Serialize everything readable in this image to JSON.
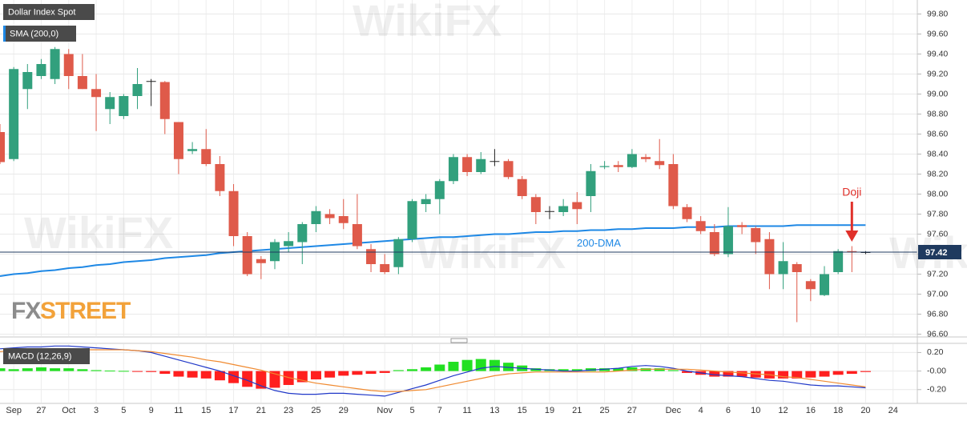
{
  "chart_data": [
    {
      "type": "candlestick",
      "title": "Dollar Index Spot",
      "categories": [
        null,
        "Sep",
        null,
        "27",
        null,
        "Oct",
        null,
        "3",
        null,
        "5",
        null,
        "9",
        null,
        "11",
        null,
        "15",
        null,
        "17",
        null,
        "21",
        null,
        "23",
        null,
        "25",
        null,
        "29",
        null,
        null,
        "Nov",
        null,
        "5",
        null,
        "7",
        null,
        "11",
        null,
        "13",
        null,
        "15",
        null,
        "19",
        null,
        "21",
        null,
        "25",
        null,
        "27",
        null,
        null,
        "Dec",
        null,
        "4",
        null,
        "6",
        null,
        "10",
        null,
        "12",
        null,
        "16",
        null,
        "18",
        null,
        "20",
        null,
        "24"
      ],
      "open": [
        98.62,
        98.35,
        99.05,
        99.18,
        99.15,
        99.4,
        99.18,
        99.05,
        98.85,
        98.78,
        98.98,
        99.13,
        99.12,
        98.72,
        98.43,
        98.45,
        98.3,
        98.03,
        97.58,
        97.35,
        97.33,
        97.48,
        97.52,
        97.7,
        97.8,
        97.78,
        97.7,
        97.45,
        97.3,
        97.27,
        97.55,
        97.9,
        97.95,
        98.13,
        98.37,
        98.22,
        98.33,
        98.33,
        98.15,
        97.97,
        97.83,
        97.82,
        97.92,
        97.98,
        98.27,
        98.29,
        98.27,
        98.37,
        98.33,
        98.3,
        97.87,
        97.73,
        97.62,
        97.4,
        97.69,
        97.66,
        97.55,
        97.2,
        97.3,
        97.13,
        96.99,
        97.22,
        97.43,
        97.42,
        null,
        null
      ],
      "high": [
        98.7,
        99.27,
        99.3,
        99.35,
        99.47,
        99.45,
        99.4,
        99.2,
        99.02,
        99.0,
        99.26,
        99.15,
        99.13,
        98.72,
        98.52,
        98.65,
        98.38,
        98.1,
        97.62,
        97.38,
        97.55,
        97.62,
        97.72,
        97.88,
        97.85,
        97.95,
        98.0,
        97.5,
        97.4,
        97.57,
        97.95,
        98.0,
        98.15,
        98.4,
        98.4,
        98.42,
        98.45,
        98.35,
        98.18,
        98.0,
        97.88,
        97.95,
        98.02,
        98.3,
        98.33,
        98.33,
        98.45,
        98.4,
        98.55,
        98.4,
        97.9,
        97.78,
        97.7,
        97.87,
        97.72,
        97.68,
        97.62,
        97.52,
        97.32,
        97.15,
        97.28,
        97.45,
        97.48,
        97.43,
        null,
        null
      ],
      "low": [
        98.3,
        98.33,
        98.85,
        99.15,
        99.1,
        99.05,
        99.05,
        98.63,
        98.7,
        98.75,
        98.85,
        98.88,
        98.6,
        98.2,
        98.4,
        98.28,
        97.98,
        97.48,
        97.18,
        97.15,
        97.25,
        97.42,
        97.3,
        97.62,
        97.7,
        97.65,
        97.45,
        97.22,
        97.2,
        97.2,
        97.52,
        97.82,
        97.8,
        98.1,
        98.18,
        98.2,
        98.28,
        98.15,
        97.95,
        97.7,
        97.75,
        97.78,
        97.7,
        97.82,
        98.25,
        98.22,
        98.26,
        98.32,
        98.25,
        97.85,
        97.72,
        97.6,
        97.38,
        97.37,
        97.6,
        97.4,
        97.05,
        97.05,
        96.72,
        96.93,
        96.98,
        97.2,
        97.22,
        97.4,
        null,
        null
      ],
      "close": [
        98.32,
        99.25,
        99.22,
        99.3,
        99.45,
        99.18,
        99.05,
        98.97,
        98.97,
        98.98,
        99.1,
        99.13,
        98.75,
        98.35,
        98.45,
        98.3,
        98.03,
        97.58,
        97.2,
        97.31,
        97.52,
        97.53,
        97.7,
        97.83,
        97.76,
        97.71,
        97.48,
        97.3,
        97.22,
        97.55,
        97.93,
        97.95,
        98.13,
        98.37,
        98.22,
        98.35,
        98.33,
        98.17,
        97.98,
        97.82,
        97.83,
        97.88,
        97.85,
        98.23,
        98.28,
        98.27,
        98.4,
        98.35,
        98.29,
        97.88,
        97.75,
        97.63,
        97.4,
        97.68,
        97.67,
        97.52,
        97.2,
        97.33,
        97.22,
        97.05,
        97.2,
        97.43,
        97.42,
        97.42,
        null,
        null
      ],
      "up_color": "#32a07d",
      "down_color": "#df5a4a",
      "sma": {
        "name": "SMA (200,0)",
        "color": "#1e88e5",
        "values": [
          97.18,
          97.2,
          97.21,
          97.23,
          97.24,
          97.26,
          97.27,
          97.29,
          97.3,
          97.32,
          97.33,
          97.34,
          97.36,
          97.37,
          97.38,
          97.39,
          97.41,
          97.42,
          97.43,
          97.44,
          97.45,
          97.46,
          97.47,
          97.48,
          97.49,
          97.5,
          97.51,
          97.52,
          97.53,
          97.54,
          97.55,
          97.56,
          97.57,
          97.57,
          97.58,
          97.59,
          97.6,
          97.6,
          97.61,
          97.62,
          97.62,
          97.63,
          97.63,
          97.64,
          97.64,
          97.65,
          97.65,
          97.66,
          97.66,
          97.66,
          97.67,
          97.67,
          97.67,
          97.68,
          97.68,
          97.68,
          97.68,
          97.68,
          97.69,
          97.69,
          97.69,
          97.69,
          97.69,
          97.69,
          null,
          null
        ]
      },
      "last_price": 97.42,
      "price_color": "#1f3a5f",
      "annotations": {
        "sma_label": "200-DMA",
        "doji_label": "Doji"
      },
      "logo": [
        "FX",
        "STREET"
      ],
      "watermark": "WikiFX",
      "ylim": [
        96.58,
        99.94
      ],
      "yticks": [
        {
          "value": 96.6,
          "label": "96.60"
        },
        {
          "value": 96.8,
          "label": "96.80"
        },
        {
          "value": 97.0,
          "label": "97.00"
        },
        {
          "value": 97.2,
          "label": "97.20"
        },
        {
          "value": 97.4,
          "label": "97.40"
        },
        {
          "value": 97.6,
          "label": "97.60"
        },
        {
          "value": 97.8,
          "label": "97.80"
        },
        {
          "value": 98.0,
          "label": "98.00"
        },
        {
          "value": 98.2,
          "label": "98.20"
        },
        {
          "value": 98.4,
          "label": "98.40"
        },
        {
          "value": 98.6,
          "label": "98.60"
        },
        {
          "value": 98.8,
          "label": "98.80"
        },
        {
          "value": 99.0,
          "label": "99.00"
        },
        {
          "value": 99.2,
          "label": "99.20"
        },
        {
          "value": 99.4,
          "label": "99.40"
        },
        {
          "value": 99.6,
          "label": "99.60"
        },
        {
          "value": 99.8,
          "label": "99.80"
        }
      ],
      "grid": true
    },
    {
      "type": "macd",
      "title": "MACD (12,26,9)",
      "histogram": [
        0.03,
        0.02,
        0.03,
        0.04,
        0.03,
        0.03,
        0.02,
        0.01,
        0.005,
        0.002,
        -0.003,
        -0.01,
        -0.03,
        -0.06,
        -0.07,
        -0.08,
        -0.1,
        -0.13,
        -0.17,
        -0.19,
        -0.18,
        -0.15,
        -0.12,
        -0.09,
        -0.07,
        -0.05,
        -0.04,
        -0.03,
        -0.02,
        0.01,
        0.02,
        0.04,
        0.07,
        0.1,
        0.12,
        0.13,
        0.12,
        0.09,
        0.06,
        0.03,
        0.02,
        0.02,
        0.02,
        0.03,
        0.03,
        0.03,
        0.04,
        0.03,
        0.03,
        0.01,
        -0.02,
        -0.04,
        -0.06,
        -0.06,
        -0.06,
        -0.07,
        -0.08,
        -0.08,
        -0.08,
        -0.07,
        -0.06,
        -0.04,
        -0.03,
        -0.01,
        null,
        null
      ],
      "up_color": "#22e022",
      "down_color": "#ff1f1f",
      "series": [
        {
          "name": "MACD",
          "color": "#2038c8",
          "values": [
            0.24,
            0.25,
            0.26,
            0.26,
            0.27,
            0.27,
            0.26,
            0.25,
            0.24,
            0.23,
            0.22,
            0.2,
            0.16,
            0.12,
            0.08,
            0.04,
            0.0,
            -0.05,
            -0.1,
            -0.16,
            -0.21,
            -0.24,
            -0.25,
            -0.25,
            -0.24,
            -0.24,
            -0.25,
            -0.26,
            -0.27,
            -0.23,
            -0.19,
            -0.15,
            -0.1,
            -0.05,
            -0.01,
            0.03,
            0.05,
            0.04,
            0.03,
            0.02,
            0.01,
            0.0,
            0.0,
            0.01,
            0.02,
            0.03,
            0.05,
            0.06,
            0.05,
            0.03,
            0.0,
            -0.02,
            -0.04,
            -0.05,
            -0.06,
            -0.08,
            -0.1,
            -0.11,
            -0.13,
            -0.15,
            -0.16,
            -0.16,
            -0.17,
            -0.18,
            null,
            null
          ]
        },
        {
          "name": "Signal",
          "color": "#f08a30",
          "values": [
            0.21,
            0.22,
            0.22,
            0.22,
            0.23,
            0.23,
            0.23,
            0.23,
            0.23,
            0.23,
            0.22,
            0.21,
            0.19,
            0.17,
            0.15,
            0.12,
            0.1,
            0.07,
            0.04,
            0.01,
            -0.03,
            -0.07,
            -0.1,
            -0.13,
            -0.15,
            -0.17,
            -0.19,
            -0.21,
            -0.22,
            -0.22,
            -0.21,
            -0.2,
            -0.17,
            -0.14,
            -0.11,
            -0.08,
            -0.05,
            -0.03,
            -0.02,
            -0.01,
            -0.01,
            -0.01,
            -0.01,
            -0.01,
            -0.01,
            0.0,
            0.01,
            0.02,
            0.02,
            0.02,
            0.02,
            0.01,
            0.0,
            -0.01,
            -0.02,
            -0.03,
            -0.04,
            -0.06,
            -0.07,
            -0.09,
            -0.11,
            -0.13,
            -0.15,
            -0.17,
            null,
            null
          ]
        }
      ],
      "ylim": [
        -0.34,
        0.29
      ],
      "yticks": [
        {
          "value": 0.2,
          "label": "0.20"
        },
        {
          "value": 0,
          "label": "-0.00"
        },
        {
          "value": -0.2,
          "label": "-0.20"
        }
      ],
      "grid": true
    }
  ]
}
